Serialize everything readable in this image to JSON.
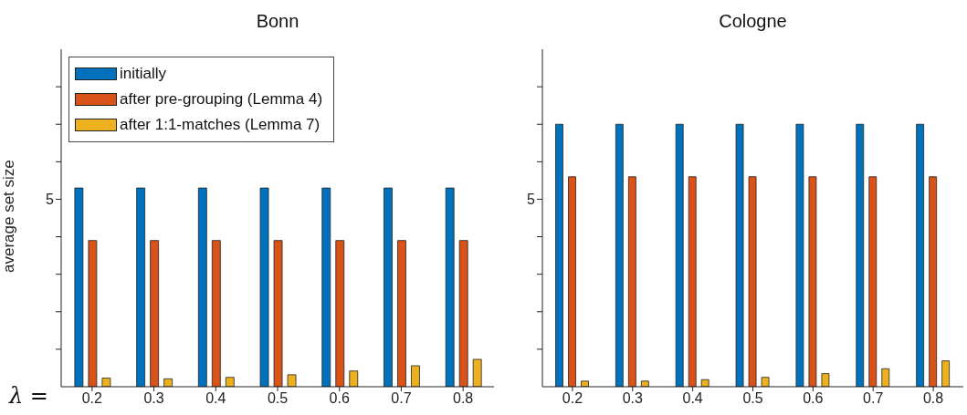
{
  "chart_data": [
    {
      "type": "bar",
      "title": "Bonn",
      "ylabel": "average set size",
      "categories": [
        "0.2",
        "0.3",
        "0.4",
        "0.5",
        "0.6",
        "0.7",
        "0.8"
      ],
      "ylim": [
        0,
        9
      ],
      "yticks": [
        {
          "value": 1,
          "label": null
        },
        {
          "value": 2,
          "label": null
        },
        {
          "value": 3,
          "label": null
        },
        {
          "value": 4,
          "label": null
        },
        5,
        {
          "value": 6,
          "label": null
        },
        {
          "value": 7,
          "label": null
        },
        {
          "value": 8,
          "label": null
        }
      ],
      "legend": "top left",
      "annotations": [
        "λ ="
      ],
      "series": [
        {
          "name": "initially",
          "color": "#0072bd",
          "values": [
            5.3,
            5.3,
            5.3,
            5.3,
            5.3,
            5.3,
            5.3
          ]
        },
        {
          "name": "after pre-grouping (Lemma 4)",
          "color": "#d95319",
          "values": [
            3.9,
            3.9,
            3.9,
            3.9,
            3.9,
            3.9,
            3.9
          ]
        },
        {
          "name": "after 1:1-matches (Lemma 7)",
          "color": "#edb120",
          "values": [
            0.23,
            0.21,
            0.25,
            0.32,
            0.42,
            0.56,
            0.73
          ]
        }
      ]
    },
    {
      "type": "bar",
      "title": "Cologne",
      "categories": [
        "0.2",
        "0.3",
        "0.4",
        "0.5",
        "0.6",
        "0.7",
        "0.8"
      ],
      "ylim": [
        0,
        9
      ],
      "yticks": [
        {
          "value": 1,
          "label": null
        },
        {
          "value": 2,
          "label": null
        },
        {
          "value": 3,
          "label": null
        },
        {
          "value": 4,
          "label": null
        },
        5,
        {
          "value": 6,
          "label": null
        },
        {
          "value": 7,
          "label": null
        },
        {
          "value": 8,
          "label": null
        }
      ],
      "series": [
        {
          "color": "#0072bd",
          "values": [
            7.0,
            7.0,
            7.0,
            7.0,
            7.0,
            7.0,
            7.0
          ]
        },
        {
          "color": "#d95319",
          "values": [
            5.6,
            5.6,
            5.6,
            5.6,
            5.6,
            5.6,
            5.6
          ]
        },
        {
          "color": "#edb120",
          "values": [
            0.15,
            0.15,
            0.19,
            0.25,
            0.35,
            0.48,
            0.69
          ]
        }
      ]
    }
  ]
}
